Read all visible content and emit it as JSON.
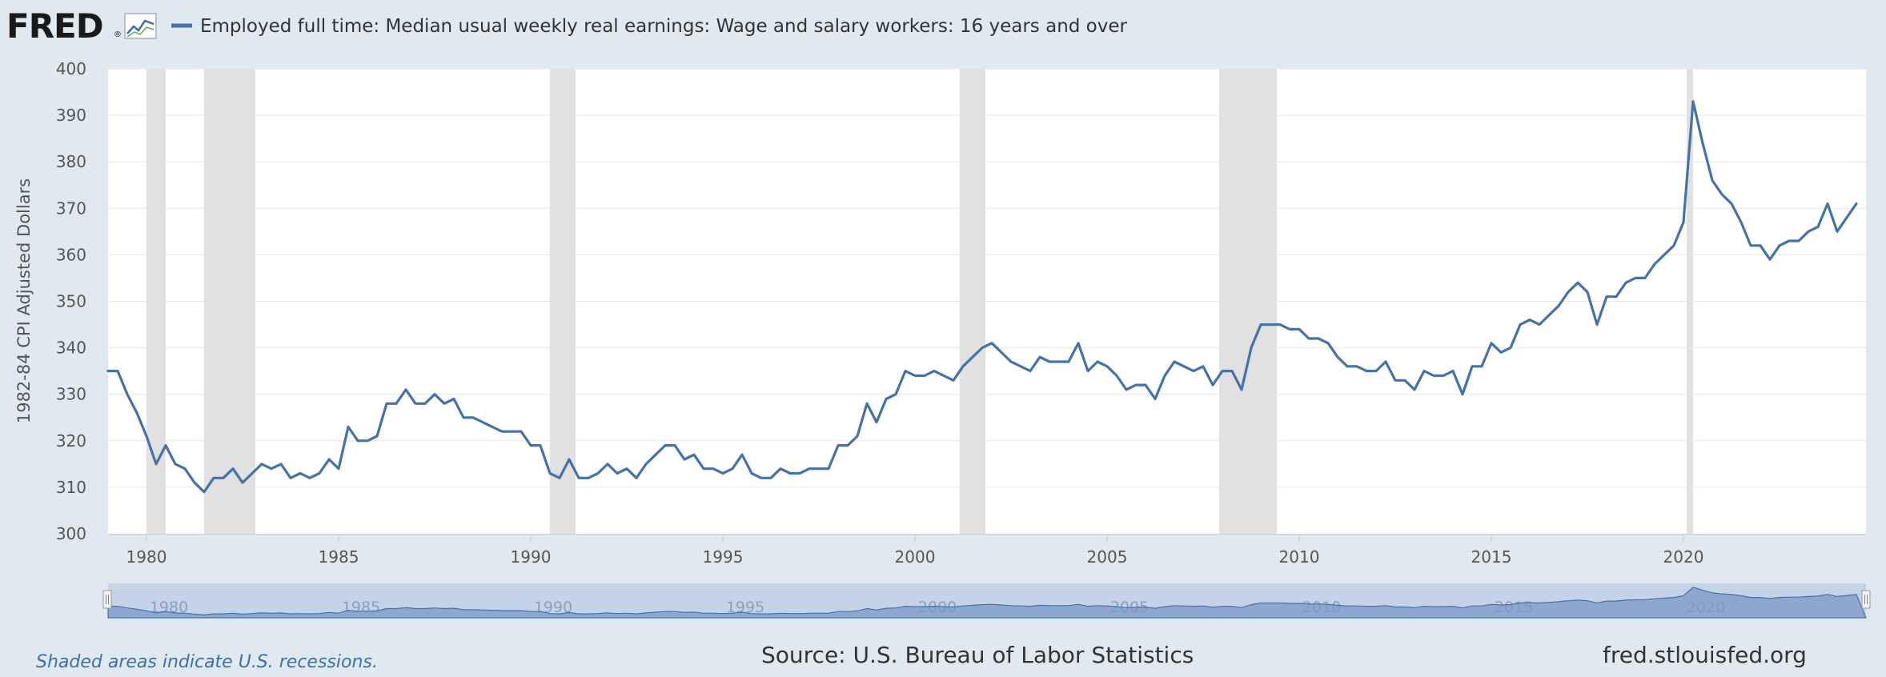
{
  "logo": {
    "text": "FRED",
    "trademark": "®",
    "icon": "chart-line-icon"
  },
  "chart_data": {
    "type": "line",
    "title": "Employed full time: Median usual weekly real earnings: Wage and salary workers: 16 years and over",
    "ylabel": "1982-84 CPI Adjusted Dollars",
    "xlabel": "",
    "ylim": [
      300,
      400
    ],
    "xlim": [
      1979.0,
      2024.75
    ],
    "yticks": [
      300,
      310,
      320,
      330,
      340,
      350,
      360,
      370,
      380,
      390,
      400
    ],
    "xticks": [
      1980,
      1985,
      1990,
      1995,
      2000,
      2005,
      2010,
      2015,
      2020
    ],
    "grid": true,
    "legend": "top-left",
    "series": [
      {
        "name": "Employed full time: Median usual weekly real earnings: Wage and salary workers: 16 years and over",
        "color": "#4572a7",
        "frequency": "quarterly",
        "x_start": 1979.0,
        "x_step": 0.25,
        "values": [
          335,
          335,
          330,
          326,
          321,
          315,
          319,
          315,
          314,
          311,
          309,
          312,
          312,
          314,
          311,
          313,
          315,
          314,
          315,
          312,
          313,
          312,
          313,
          316,
          314,
          323,
          320,
          320,
          321,
          328,
          328,
          331,
          328,
          328,
          330,
          328,
          329,
          325,
          325,
          324,
          323,
          322,
          322,
          322,
          319,
          319,
          313,
          312,
          316,
          312,
          312,
          313,
          315,
          313,
          314,
          312,
          315,
          317,
          319,
          319,
          316,
          317,
          314,
          314,
          313,
          314,
          317,
          313,
          312,
          312,
          314,
          313,
          313,
          314,
          314,
          314,
          319,
          319,
          321,
          328,
          324,
          329,
          330,
          335,
          334,
          334,
          335,
          334,
          333,
          336,
          338,
          340,
          341,
          339,
          337,
          336,
          335,
          338,
          337,
          337,
          337,
          341,
          335,
          337,
          336,
          334,
          331,
          332,
          332,
          329,
          334,
          337,
          336,
          335,
          336,
          332,
          335,
          335,
          331,
          340,
          345,
          345,
          345,
          344,
          344,
          342,
          342,
          341,
          338,
          336,
          336,
          335,
          335,
          337,
          333,
          333,
          331,
          335,
          334,
          334,
          335,
          330,
          336,
          336,
          341,
          339,
          340,
          345,
          346,
          345,
          347,
          349,
          352,
          354,
          352,
          345,
          351,
          351,
          354,
          355,
          355,
          358,
          360,
          362,
          367,
          393,
          384,
          376,
          373,
          371,
          367,
          362,
          362,
          359,
          362,
          363,
          363,
          365,
          366,
          371,
          365,
          368,
          371
        ]
      }
    ],
    "recessions": [
      {
        "start": 1980.0,
        "end": 1980.5
      },
      {
        "start": 1981.5,
        "end": 1982.833
      },
      {
        "start": 1990.5,
        "end": 1991.167
      },
      {
        "start": 2001.167,
        "end": 2001.833
      },
      {
        "start": 2007.917,
        "end": 2009.417
      },
      {
        "start": 2020.083,
        "end": 2020.25
      }
    ]
  },
  "navigator": {
    "labels": [
      "1980",
      "1985",
      "1990",
      "1995",
      "2000",
      "2005",
      "2010",
      "2015",
      "2020"
    ]
  },
  "footer": {
    "note": "Shaded areas indicate U.S. recessions.",
    "source": "Source: U.S. Bureau of Labor Statistics",
    "url": "fred.stlouisfed.org"
  },
  "colors": {
    "background": "#e1e9f0",
    "plot": "#ffffff",
    "line": "#4572a7",
    "recession": "#e1e1e1",
    "grid": "#e6e6e6"
  }
}
